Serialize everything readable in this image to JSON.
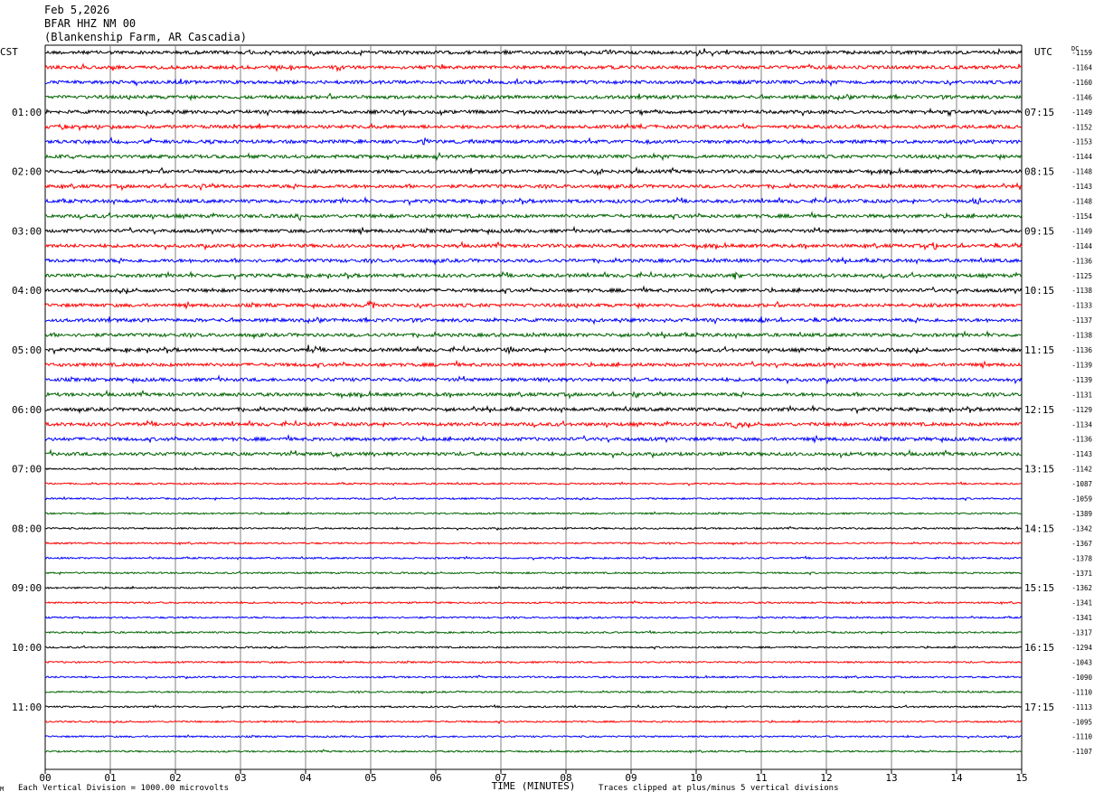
{
  "header": {
    "date": "Feb 5,2026",
    "station": "BFAR HHZ NM 00",
    "location": "(Blankenship Farm, AR Cascadia)"
  },
  "footer": {
    "scale_note": "Each Vertical Division = 1000.00 microvolts",
    "clip_note": "Traces clipped at plus/minus 5 vertical divisions",
    "corner_mark": "M"
  },
  "colors": {
    "trace_cycle": [
      "#000000",
      "#ff0000",
      "#0000ff",
      "#006400"
    ],
    "grid": "#808080"
  },
  "chart_data": {
    "type": "line",
    "title": "Feb 5,2026 BFAR HHZ NM 00 (Blankenship Farm, AR Cascadia)",
    "xlabel": "TIME (MINUTES)",
    "x_ticks": [
      "00",
      "01",
      "02",
      "03",
      "04",
      "05",
      "06",
      "07",
      "08",
      "09",
      "10",
      "11",
      "12",
      "13",
      "14",
      "15"
    ],
    "xlim": [
      0,
      15
    ],
    "left_axis_label": "CST",
    "right_axis_label": "UTC",
    "dc_label": "DC",
    "trace_minutes": 15,
    "hour_labels_cst": [
      "01:00",
      "02:00",
      "03:00",
      "04:00",
      "05:00",
      "06:00",
      "07:00",
      "08:00",
      "09:00",
      "10:00",
      "11:00"
    ],
    "hour_labels_utc": [
      "07:15",
      "08:15",
      "09:15",
      "10:15",
      "11:15",
      "12:15",
      "13:15",
      "14:15",
      "15:15",
      "16:15",
      "17:15"
    ],
    "dc_offsets": [
      -1159,
      -1164,
      -1160,
      -1146,
      -1149,
      -1152,
      -1153,
      -1144,
      -1148,
      -1143,
      -1148,
      -1154,
      -1149,
      -1144,
      -1136,
      -1125,
      -1138,
      -1133,
      -1137,
      -1138,
      -1136,
      -1139,
      -1139,
      -1131,
      -1129,
      -1134,
      -1136,
      -1143,
      -1142,
      -1087,
      -1059,
      -1389,
      -1342,
      -1367,
      -1378,
      -1371,
      -1362,
      -1341,
      -1341,
      -1317,
      -1294,
      -1043,
      -1090,
      -1110,
      -1113,
      -1095,
      -1110,
      -1107
    ],
    "activity": [
      2,
      2,
      2,
      2,
      2,
      2,
      2,
      2,
      2,
      2,
      2,
      2,
      2,
      2,
      2,
      2,
      2,
      2,
      2,
      2,
      2,
      2,
      2,
      2,
      2,
      2,
      2,
      2,
      1,
      1,
      1,
      1,
      1,
      1,
      1,
      1,
      1,
      1,
      1,
      1,
      1,
      1,
      1,
      1,
      1,
      1,
      1,
      1
    ],
    "events": [
      {
        "trace": 0,
        "minute": 10.05,
        "amp": 4
      },
      {
        "trace": 1,
        "minute": 2.95,
        "amp": 4
      },
      {
        "trace": 5,
        "minute": 0.3,
        "amp": 5
      },
      {
        "trace": 6,
        "minute": 5.85,
        "amp": 4
      },
      {
        "trace": 8,
        "minute": 8.5,
        "amp": 5
      },
      {
        "trace": 9,
        "minute": 2.4,
        "amp": 4
      },
      {
        "trace": 10,
        "minute": 14.3,
        "amp": 5
      },
      {
        "trace": 11,
        "minute": 3.9,
        "amp": 4
      },
      {
        "trace": 13,
        "minute": 13.65,
        "amp": 8
      },
      {
        "trace": 15,
        "minute": 10.6,
        "amp": 6
      },
      {
        "trace": 16,
        "minute": 10.2,
        "amp": 4
      },
      {
        "trace": 17,
        "minute": 5.0,
        "amp": 5
      },
      {
        "trace": 18,
        "minute": 11.0,
        "amp": 5
      },
      {
        "trace": 20,
        "minute": 4.05,
        "amp": 5
      },
      {
        "trace": 20,
        "minute": 7.1,
        "amp": 5
      },
      {
        "trace": 23,
        "minute": 9.1,
        "amp": 5
      },
      {
        "trace": 25,
        "minute": 10.6,
        "amp": 4
      },
      {
        "trace": 27,
        "minute": 4.45,
        "amp": 4
      }
    ]
  }
}
